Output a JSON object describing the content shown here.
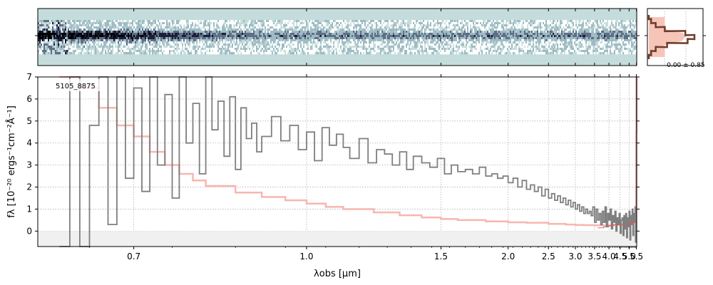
{
  "chart_data": [
    {
      "type": "heatmap",
      "description_role": "2d-spectrum",
      "colormap": [
        "#c5dcdc",
        "#ffffff",
        "#9fbcc4",
        "#5e6f86",
        "#1d1f3a",
        "#000000"
      ],
      "trace_row_fraction": 0.45
    },
    {
      "type": "line",
      "role": "1d-spectrum",
      "object_label": "5105_8875",
      "xlabel": "λobs [μm]",
      "ylabel": "fλ [10⁻²⁰ ergs⁻¹cm⁻²Å⁻¹]",
      "xlim": [
        0.6,
        5.52
      ],
      "ylim": [
        -0.7,
        7.0
      ],
      "x_scale": "reciprocal",
      "grid": true,
      "x_tick_labels": [
        "0.7",
        "1.0",
        "1.5",
        "2.0",
        "2.5",
        "3.0",
        "3.5",
        "4.0",
        "4.5",
        "5.0",
        "5.5"
      ],
      "x_ticks": [
        0.7,
        1.0,
        1.5,
        2.0,
        2.5,
        3.0,
        3.5,
        4.0,
        4.5,
        5.0,
        5.5
      ],
      "y_ticks": [
        0,
        1,
        2,
        3,
        4,
        5,
        6,
        7
      ],
      "y_tick_labels": [
        "0",
        "1",
        "2",
        "3",
        "4",
        "5",
        "6",
        "7"
      ],
      "series": [
        {
          "role": "flux",
          "color": "#7f7f7f",
          "x": [
            0.62,
            0.63,
            0.64,
            0.65,
            0.66,
            0.67,
            0.68,
            0.69,
            0.7,
            0.71,
            0.72,
            0.73,
            0.74,
            0.75,
            0.76,
            0.77,
            0.78,
            0.79,
            0.8,
            0.81,
            0.82,
            0.83,
            0.84,
            0.85,
            0.86,
            0.87,
            0.88,
            0.89,
            0.9,
            0.92,
            0.94,
            0.96,
            0.98,
            1.0,
            1.02,
            1.04,
            1.06,
            1.08,
            1.1,
            1.12,
            1.15,
            1.18,
            1.21,
            1.24,
            1.27,
            1.3,
            1.33,
            1.36,
            1.4,
            1.44,
            1.48,
            1.52,
            1.56,
            1.6,
            1.65,
            1.7,
            1.75,
            1.8,
            1.85,
            1.9,
            1.95,
            2.0,
            2.05,
            2.1,
            2.15,
            2.2,
            2.25,
            2.3,
            2.35,
            2.4,
            2.45,
            2.5,
            2.55,
            2.6,
            2.65,
            2.7,
            2.75,
            2.8,
            2.85,
            2.9,
            2.95,
            3.0,
            3.05,
            3.1,
            3.15,
            3.2,
            3.25,
            3.3,
            3.35,
            3.4,
            3.45,
            3.5,
            3.55,
            3.6,
            3.65,
            3.7,
            3.75,
            3.8,
            3.85,
            3.9,
            3.95,
            4.0,
            4.05,
            4.1,
            4.15,
            4.2,
            4.25,
            4.3,
            4.35,
            4.4,
            4.45,
            4.5,
            4.55,
            4.6,
            4.65,
            4.7,
            4.75,
            4.8,
            4.85,
            4.9,
            4.95,
            5.0,
            5.05,
            5.1,
            5.15,
            5.2,
            5.25,
            5.3,
            5.35,
            5.4,
            5.43,
            5.46,
            5.48,
            5.5
          ],
          "y": [
            -0.7,
            7.0,
            -0.7,
            4.8,
            7.0,
            0.3,
            7.0,
            2.4,
            6.5,
            1.8,
            7.0,
            3.0,
            6.2,
            1.5,
            7.0,
            4.0,
            5.8,
            2.6,
            7.0,
            4.6,
            5.9,
            3.4,
            6.1,
            2.8,
            5.6,
            4.2,
            4.9,
            3.6,
            4.3,
            5.2,
            4.1,
            4.8,
            3.7,
            4.5,
            3.2,
            4.7,
            3.9,
            4.4,
            3.8,
            3.3,
            4.2,
            3.1,
            3.7,
            3.5,
            3.0,
            3.6,
            2.8,
            3.4,
            3.1,
            2.9,
            3.3,
            2.6,
            3.0,
            2.7,
            2.8,
            2.6,
            2.9,
            2.5,
            2.6,
            2.4,
            2.5,
            2.2,
            2.4,
            2.0,
            2.3,
            1.9,
            2.1,
            1.8,
            2.0,
            1.6,
            1.9,
            1.5,
            1.7,
            1.4,
            1.6,
            1.3,
            1.5,
            1.2,
            1.4,
            1.1,
            1.3,
            1.0,
            1.2,
            0.9,
            1.1,
            0.8,
            1.0,
            0.8,
            0.9,
            0.7,
            1.1,
            0.4,
            1.0,
            0.5,
            0.8,
            0.3,
            0.9,
            0.4,
            1.1,
            0.2,
            0.8,
            0.5,
            1.0,
            0.1,
            0.7,
            0.4,
            0.9,
            0.0,
            0.6,
            0.3,
            0.8,
            -0.1,
            0.5,
            0.6,
            -0.2,
            0.7,
            0.1,
            0.8,
            -0.3,
            0.6,
            0.2,
            0.9,
            -0.4,
            0.7,
            0.3,
            1.0,
            -0.2,
            0.8,
            0.4,
            1.1,
            -0.5,
            0.9,
            0.6,
            7.0
          ]
        },
        {
          "role": "model-error",
          "color": "#f7b6b0",
          "x": [
            0.62,
            0.64,
            0.66,
            0.68,
            0.7,
            0.72,
            0.74,
            0.76,
            0.78,
            0.8,
            0.85,
            0.9,
            0.95,
            1.0,
            1.05,
            1.1,
            1.2,
            1.3,
            1.4,
            1.5,
            1.6,
            1.8,
            2.0,
            2.2,
            2.5,
            2.8,
            3.0,
            3.2,
            3.5,
            3.8,
            4.0,
            4.2,
            4.5,
            4.8,
            5.0,
            5.2,
            5.3,
            5.4,
            5.44,
            5.47,
            5.49,
            5.51
          ],
          "y": [
            7.0,
            6.5,
            5.6,
            4.8,
            4.3,
            3.6,
            3.0,
            2.6,
            2.3,
            2.05,
            1.75,
            1.55,
            1.4,
            1.25,
            1.1,
            1.0,
            0.85,
            0.72,
            0.62,
            0.55,
            0.5,
            0.44,
            0.4,
            0.38,
            0.33,
            0.3,
            0.28,
            0.27,
            0.26,
            0.25,
            0.26,
            0.27,
            0.3,
            0.33,
            0.35,
            0.4,
            0.48,
            0.65,
            1.0,
            2.0,
            4.5,
            7.0
          ]
        },
        {
          "role": "model",
          "color": "#d45a5a",
          "x": [
            3.6,
            3.8,
            4.0,
            4.2,
            4.4,
            4.6,
            4.8,
            5.0,
            5.2,
            5.4,
            5.5
          ],
          "y": [
            0.15,
            0.2,
            0.25,
            0.3,
            0.3,
            0.3,
            0.32,
            0.35,
            0.4,
            0.5,
            7.0
          ]
        }
      ]
    },
    {
      "type": "bar",
      "role": "cross-dispersion-profile",
      "annotation": "-0.00 ± 0.85",
      "profile_color": "#6e3b2a",
      "profile_fill": "#f6c5b8",
      "values": [
        0.0,
        0.05,
        0.15,
        0.35,
        0.8,
        1.0,
        0.85,
        0.4,
        0.15,
        0.05,
        0.0
      ],
      "fill_values": [
        0.35,
        0.35,
        0.35,
        0.35,
        0.75,
        0.8,
        0.72,
        0.35,
        0.35,
        0.35,
        0.35
      ]
    }
  ]
}
